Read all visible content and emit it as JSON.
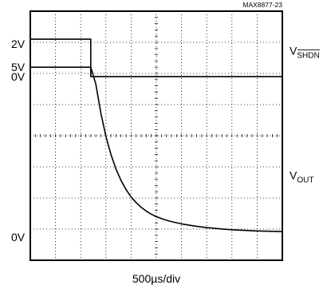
{
  "chart_data": {
    "type": "line",
    "figure_id": "MAX8877-23",
    "x_scale": "500µs/div",
    "x_divisions": 10,
    "y_divisions": 8,
    "grid": true,
    "traces": [
      {
        "name_main": "V",
        "name_sub": "SHDN",
        "name_sub_overline": true,
        "level_labels": [
          {
            "text": "2V",
            "div": 6.95
          },
          {
            "text": "0V",
            "div": 5.9
          }
        ],
        "x": [
          0,
          2.4,
          2.4,
          10
        ],
        "y": [
          7.1,
          7.1,
          5.9,
          5.9
        ]
      },
      {
        "name_main": "V",
        "name_sub": "OUT",
        "name_sub_overline": false,
        "level_labels": [
          {
            "text": "5V",
            "div": 6.2
          },
          {
            "text": "0V",
            "div": 0.75
          }
        ],
        "x": [
          0,
          2.4,
          2.6,
          2.8,
          3.0,
          3.2,
          3.4,
          3.6,
          3.8,
          4.0,
          4.2,
          4.4,
          4.6,
          4.8,
          5.0,
          5.3,
          5.6,
          6.0,
          6.5,
          7.0,
          7.5,
          8.0,
          8.5,
          9.0,
          10
        ],
        "y": [
          6.2,
          6.2,
          5.65,
          4.72,
          3.98,
          3.4,
          2.93,
          2.56,
          2.27,
          2.03,
          1.85,
          1.7,
          1.58,
          1.48,
          1.4,
          1.31,
          1.24,
          1.17,
          1.1,
          1.05,
          1.01,
          0.98,
          0.96,
          0.94,
          0.92
        ]
      }
    ]
  }
}
